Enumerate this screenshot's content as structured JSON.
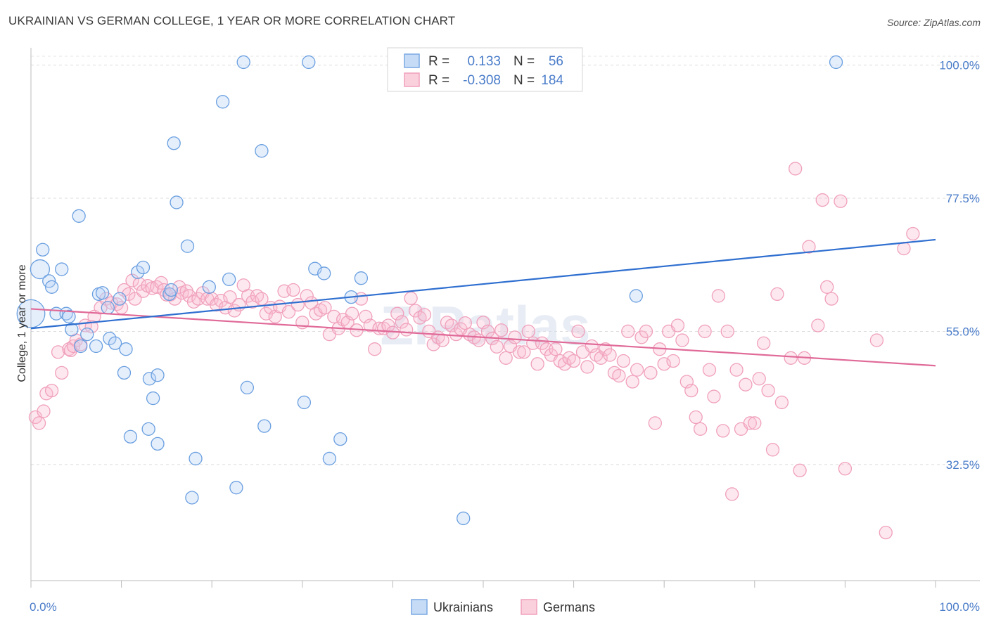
{
  "title": "UKRAINIAN VS GERMAN COLLEGE, 1 YEAR OR MORE CORRELATION CHART",
  "source": "Source: ZipAtlas.com",
  "watermark": "ZIPatlas",
  "colors": {
    "ukrainians": "#6a9fe0",
    "ukrainians_line": "#2f6fd0",
    "germans": "#f0a0bc",
    "germans_line": "#e06a98",
    "tick": "#4a7cc9"
  },
  "legend": {
    "r_label": "R =",
    "n_label": "N =",
    "rows": [
      {
        "r": "0.133",
        "n": "56"
      },
      {
        "r": "-0.308",
        "n": "184"
      }
    ]
  },
  "chart_data": {
    "type": "scatter",
    "xlabel": "",
    "ylabel": "College, 1 year or more",
    "xlim": [
      0,
      100
    ],
    "ylim": [
      13,
      101.5
    ],
    "x_tick_labels": [
      "0.0%",
      "100.0%"
    ],
    "y_ticks": [
      32.5,
      55.0,
      77.5,
      100.0
    ],
    "y_tick_labels": [
      "32.5%",
      "55.0%",
      "77.5%",
      "100.0%"
    ],
    "series": [
      {
        "name": "Ukrainians",
        "r": 0.133,
        "n": 56,
        "trend": [
          [
            0,
            55.5
          ],
          [
            100,
            70.5
          ]
        ],
        "points": [
          [
            0,
            58,
            2.2
          ],
          [
            1,
            65.5,
            1.5
          ],
          [
            1.3,
            68.8,
            1
          ],
          [
            2,
            63.5,
            1
          ],
          [
            2.3,
            62.5,
            1
          ],
          [
            3.4,
            65.5,
            1
          ],
          [
            2.8,
            58,
            1
          ],
          [
            3.9,
            58,
            1
          ],
          [
            4.2,
            57.5,
            1
          ],
          [
            4.5,
            55.3,
            1
          ],
          [
            5.5,
            52.5,
            1
          ],
          [
            6.2,
            54.5,
            1
          ],
          [
            5.3,
            74.5,
            1
          ],
          [
            7.2,
            52.5,
            1
          ],
          [
            7.5,
            61.3,
            1
          ],
          [
            7.9,
            61.5,
            1
          ],
          [
            8.5,
            59,
            1
          ],
          [
            8.7,
            53.8,
            1
          ],
          [
            9.3,
            53,
            1
          ],
          [
            9.8,
            60.5,
            1
          ],
          [
            10.3,
            48,
            1
          ],
          [
            10.5,
            52,
            1
          ],
          [
            11,
            37.2,
            1
          ],
          [
            11.8,
            65,
            1
          ],
          [
            12.4,
            65.8,
            1
          ],
          [
            13,
            38.5,
            1
          ],
          [
            13.1,
            47,
            1
          ],
          [
            13.5,
            43.7,
            1
          ],
          [
            14,
            47.6,
            1
          ],
          [
            14,
            36,
            1
          ],
          [
            15.3,
            61.3,
            1
          ],
          [
            15.5,
            62,
            1
          ],
          [
            15.8,
            86.8,
            1
          ],
          [
            16.1,
            76.8,
            1
          ],
          [
            17.3,
            69.4,
            1
          ],
          [
            17.8,
            26.9,
            1
          ],
          [
            18.2,
            33.5,
            1
          ],
          [
            19.7,
            62.5,
            1
          ],
          [
            21.2,
            93.8,
            1
          ],
          [
            21.9,
            63.8,
            1
          ],
          [
            22.7,
            28.6,
            1
          ],
          [
            23.5,
            100.5,
            1
          ],
          [
            23.9,
            45.5,
            1
          ],
          [
            25.5,
            85.5,
            1
          ],
          [
            25.8,
            39,
            1
          ],
          [
            30.2,
            43,
            1
          ],
          [
            30.7,
            100.5,
            1
          ],
          [
            31.4,
            65.6,
            1
          ],
          [
            32.4,
            64.8,
            1
          ],
          [
            33,
            33.5,
            1
          ],
          [
            34.2,
            36.8,
            1
          ],
          [
            35.4,
            60.8,
            1
          ],
          [
            36.5,
            64,
            1
          ],
          [
            47.8,
            23.4,
            1
          ],
          [
            66.9,
            61,
            1
          ],
          [
            89,
            100.5,
            1
          ]
        ]
      },
      {
        "name": "Germans",
        "r": -0.308,
        "n": 184,
        "trend": [
          [
            0,
            58.8
          ],
          [
            100,
            49.2
          ]
        ],
        "points": [
          [
            0.5,
            40.5
          ],
          [
            0.9,
            39.5
          ],
          [
            1.4,
            41.5
          ],
          [
            1.7,
            44.5
          ],
          [
            2.3,
            45
          ],
          [
            3,
            51.5
          ],
          [
            3.4,
            48
          ],
          [
            4.2,
            52
          ],
          [
            4.4,
            51.8
          ],
          [
            4.7,
            52.5
          ],
          [
            5,
            53.5
          ],
          [
            5.5,
            52.8
          ],
          [
            6,
            56
          ],
          [
            6.7,
            55.8
          ],
          [
            7,
            57.5
          ],
          [
            7.7,
            59
          ],
          [
            8.3,
            60.5
          ],
          [
            8.9,
            59.8
          ],
          [
            9.5,
            59.6
          ],
          [
            10,
            59
          ],
          [
            10.3,
            62
          ],
          [
            10.8,
            61.3
          ],
          [
            11.2,
            63.6
          ],
          [
            11.5,
            60.5
          ],
          [
            12,
            63
          ],
          [
            12.4,
            61.8
          ],
          [
            12.9,
            62.7
          ],
          [
            13.4,
            62.3
          ],
          [
            13.9,
            62.5
          ],
          [
            14.4,
            63.2
          ],
          [
            14.7,
            62
          ],
          [
            15,
            61.2
          ],
          [
            15.4,
            61.2
          ],
          [
            15.9,
            60.5
          ],
          [
            16.4,
            62.5
          ],
          [
            16.7,
            61.5
          ],
          [
            17.2,
            61.8
          ],
          [
            17.5,
            61
          ],
          [
            18,
            60
          ],
          [
            18.5,
            60.5
          ],
          [
            19,
            61.5
          ],
          [
            19.5,
            60.5
          ],
          [
            20,
            60.5
          ],
          [
            20.5,
            59.5
          ],
          [
            21,
            60.2
          ],
          [
            21.5,
            59
          ],
          [
            22,
            60.8
          ],
          [
            22.5,
            58.5
          ],
          [
            23,
            59.5
          ],
          [
            23.5,
            62.8
          ],
          [
            24,
            61
          ],
          [
            24.5,
            60
          ],
          [
            25,
            61
          ],
          [
            25.5,
            60.5
          ],
          [
            26,
            58
          ],
          [
            26.5,
            59
          ],
          [
            27,
            57.5
          ],
          [
            27.5,
            59.2
          ],
          [
            28,
            61.8
          ],
          [
            28.5,
            58.3
          ],
          [
            29,
            62
          ],
          [
            29.5,
            59.5
          ],
          [
            30,
            56.5
          ],
          [
            30.5,
            61
          ],
          [
            31,
            59.8
          ],
          [
            31.5,
            58
          ],
          [
            32,
            58.6
          ],
          [
            32.5,
            59
          ],
          [
            33,
            54.5
          ],
          [
            33.5,
            57.5
          ],
          [
            34,
            55.5
          ],
          [
            34.5,
            57
          ],
          [
            35,
            56.5
          ],
          [
            35.5,
            58
          ],
          [
            36,
            55.2
          ],
          [
            36.5,
            60.5
          ],
          [
            37,
            57.5
          ],
          [
            37.5,
            56
          ],
          [
            38,
            52
          ],
          [
            38.5,
            55.5
          ],
          [
            39,
            55.5
          ],
          [
            39.5,
            56
          ],
          [
            40,
            54.8
          ],
          [
            40.5,
            58
          ],
          [
            41,
            56.6
          ],
          [
            41.5,
            55.3
          ],
          [
            42,
            60.6
          ],
          [
            42.5,
            58.5
          ],
          [
            43,
            57.3
          ],
          [
            43.5,
            57.8
          ],
          [
            44,
            55
          ],
          [
            44.5,
            52.8
          ],
          [
            45,
            54
          ],
          [
            45.5,
            53.5
          ],
          [
            46,
            56.5
          ],
          [
            46.5,
            56
          ],
          [
            47,
            54.5
          ],
          [
            47.5,
            55.4
          ],
          [
            48,
            56.4
          ],
          [
            48.5,
            54.5
          ],
          [
            49,
            54
          ],
          [
            49.5,
            53.5
          ],
          [
            50,
            56.5
          ],
          [
            50.5,
            55
          ],
          [
            51,
            53.8
          ],
          [
            51.5,
            52.4
          ],
          [
            52,
            55.2
          ],
          [
            52.5,
            50.5
          ],
          [
            53,
            52.5
          ],
          [
            53.5,
            54
          ],
          [
            54,
            51.5
          ],
          [
            54.5,
            51.5
          ],
          [
            55,
            55
          ],
          [
            55.5,
            53
          ],
          [
            56,
            49.5
          ],
          [
            56.5,
            53
          ],
          [
            57,
            52
          ],
          [
            57.5,
            51
          ],
          [
            58,
            52
          ],
          [
            58.5,
            50
          ],
          [
            59,
            49.5
          ],
          [
            59.5,
            50.5
          ],
          [
            60,
            50
          ],
          [
            60.5,
            55
          ],
          [
            61,
            51.5
          ],
          [
            61.5,
            49
          ],
          [
            62,
            52.5
          ],
          [
            62.5,
            51
          ],
          [
            63,
            50.5
          ],
          [
            63.5,
            52
          ],
          [
            64,
            51
          ],
          [
            64.5,
            48
          ],
          [
            65,
            47.5
          ],
          [
            65.5,
            50
          ],
          [
            66,
            55
          ],
          [
            66.5,
            46.5
          ],
          [
            67,
            48.5
          ],
          [
            67.5,
            54
          ],
          [
            68,
            55
          ],
          [
            68.5,
            48
          ],
          [
            69,
            39.5
          ],
          [
            69.5,
            52
          ],
          [
            70,
            49.5
          ],
          [
            70.5,
            55
          ],
          [
            71,
            50
          ],
          [
            71.5,
            56
          ],
          [
            72,
            53.5
          ],
          [
            72.5,
            46.5
          ],
          [
            73,
            45
          ],
          [
            73.5,
            40.5
          ],
          [
            74,
            38.5
          ],
          [
            74.5,
            55
          ],
          [
            75,
            48.5
          ],
          [
            75.5,
            44
          ],
          [
            76,
            61
          ],
          [
            76.5,
            38.2
          ],
          [
            77,
            55
          ],
          [
            77.5,
            27.5
          ],
          [
            78,
            48.5
          ],
          [
            78.5,
            38.5
          ],
          [
            79,
            46
          ],
          [
            79.5,
            39.5
          ],
          [
            80,
            39.5
          ],
          [
            80.5,
            47
          ],
          [
            81,
            53
          ],
          [
            81.5,
            45
          ],
          [
            82,
            35
          ],
          [
            82.5,
            61.3
          ],
          [
            83,
            43
          ],
          [
            84,
            50.5
          ],
          [
            84.5,
            82.5
          ],
          [
            85,
            31.5
          ],
          [
            85.5,
            50.5
          ],
          [
            86,
            69.3
          ],
          [
            87,
            56
          ],
          [
            87.5,
            77.2
          ],
          [
            88,
            62.5
          ],
          [
            88.5,
            60.5
          ],
          [
            89.5,
            77
          ],
          [
            90,
            31.8
          ],
          [
            93.5,
            53.5
          ],
          [
            94.5,
            21
          ],
          [
            96.5,
            69
          ],
          [
            97.5,
            71.5
          ]
        ]
      }
    ]
  },
  "bottom_legend": [
    "Ukrainians",
    "Germans"
  ]
}
